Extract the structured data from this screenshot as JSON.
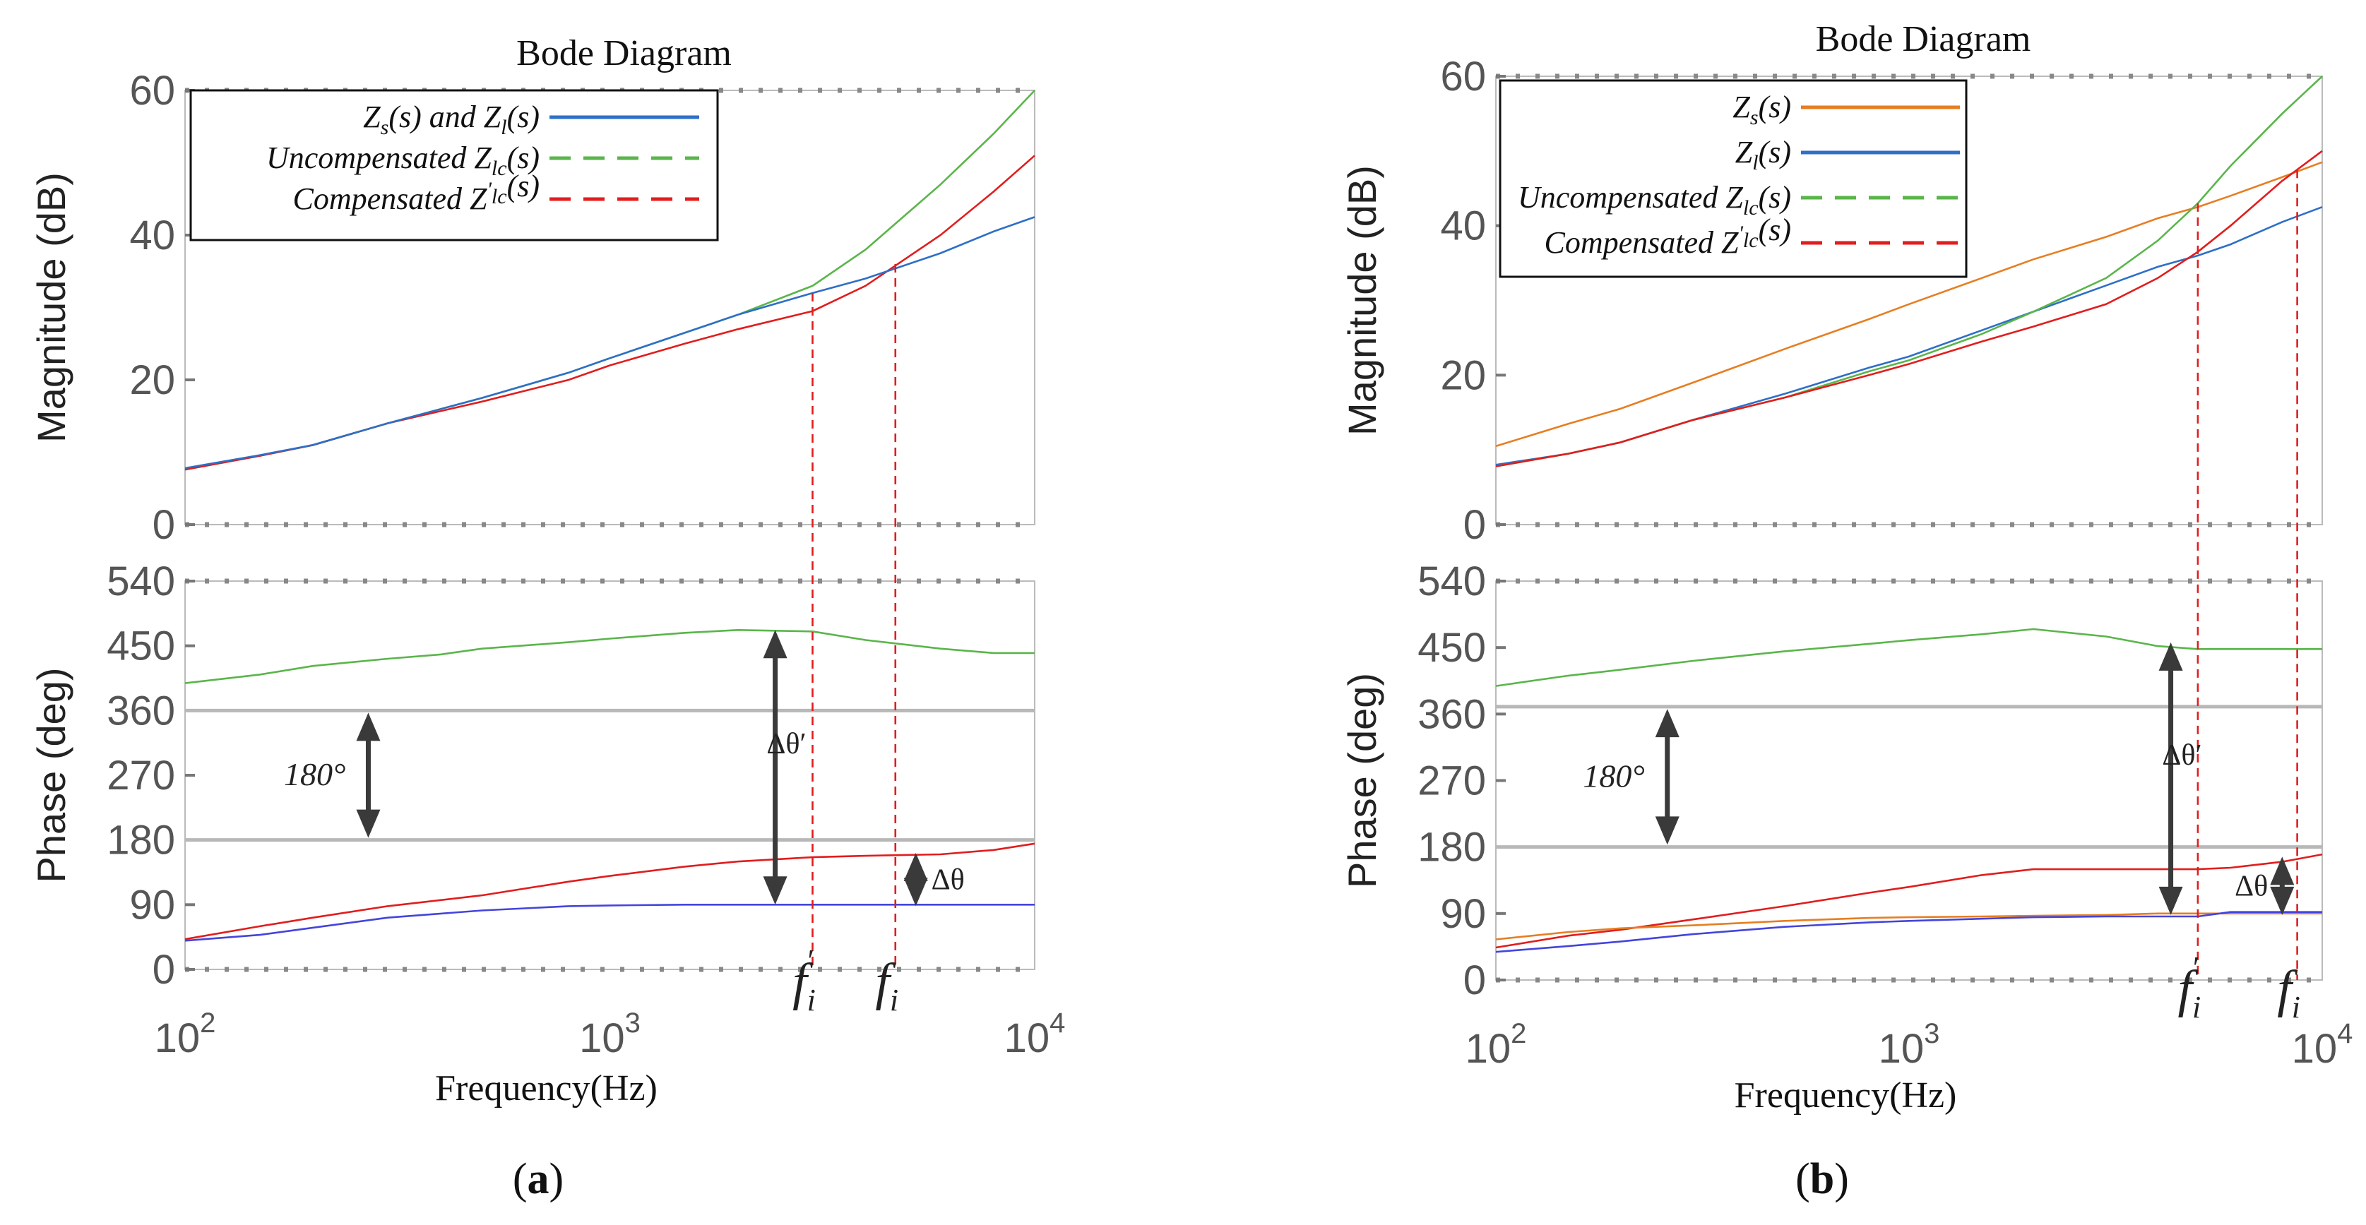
{
  "figure": {
    "panel_a_label": "a",
    "panel_b_label": "b",
    "paren_open": "(",
    "paren_close": ")"
  },
  "colors": {
    "zs_ab": "#2e6fc7",
    "zs_b": "#e67e22",
    "zl_b": "#2e6fc7",
    "uncomp": "#5ab54a",
    "comp": "#e11d1d",
    "phase_blue": "#4444dd",
    "ref": "#b8b8b8",
    "arrow": "#3a3a3a",
    "axis": "#888888"
  },
  "chart_data": [
    {
      "id": "a",
      "type": "line",
      "title": "Bode Diagram",
      "xlabel": "Frequency(Hz)",
      "xscale": "log",
      "xlim": [
        100,
        10000
      ],
      "xticks": [
        "10",
        "10",
        "10"
      ],
      "xtick_exponents": [
        "2",
        "3",
        "4"
      ],
      "magnitude": {
        "ylabel": "Magnitude (dB)",
        "ylim": [
          0,
          60
        ],
        "yticks": [
          "0",
          "20",
          "40",
          "60"
        ],
        "series": [
          {
            "name": "Uncompensated Zlc(s)",
            "color_key": "uncomp",
            "x": [
              100,
              150,
              200,
              300,
              500,
              800,
              1000,
              1500,
              2000,
              3000,
              4000,
              6000,
              8000,
              10000
            ],
            "y": [
              7.6,
              9.5,
              11,
              14,
              17.5,
              21,
              23,
              26.5,
              29,
              33,
              38,
              47,
              54,
              60
            ]
          },
          {
            "name": "Compensated Z'lc(s)",
            "color_key": "comp",
            "x": [
              100,
              150,
              200,
              300,
              500,
              800,
              1000,
              1500,
              2000,
              3000,
              4000,
              6000,
              8000,
              10000
            ],
            "y": [
              7.6,
              9.5,
              11,
              14,
              17,
              20,
              22,
              25,
              27,
              29.5,
              33,
              40,
              46,
              51
            ]
          },
          {
            "name": "Zs(s) and Zl(s)",
            "color_key": "zs_ab",
            "x": [
              100,
              150,
              200,
              300,
              500,
              800,
              1000,
              1500,
              2000,
              3000,
              4000,
              6000,
              8000,
              10000
            ],
            "y": [
              7.8,
              9.6,
              11,
              14,
              17.5,
              21,
              23,
              26.5,
              29,
              32,
              34,
              37.5,
              40.5,
              42.5
            ]
          }
        ],
        "legend": {
          "position": "top-left",
          "entries": [
            {
              "parts": [
                "Z",
                "s",
                "(s) and Z",
                "l",
                "(s)"
              ],
              "color_key": "zs_ab",
              "dash": "solid"
            },
            {
              "parts": [
                "Uncompensated Z",
                "lc",
                "(s)"
              ],
              "color_key": "uncomp",
              "dash": "dashed"
            },
            {
              "parts": [
                "Compensated Z",
                "'",
                "lc",
                "(s)"
              ],
              "color_key": "comp",
              "dash": "dashed"
            }
          ]
        },
        "vlines": [
          {
            "x": 3000,
            "y_top": 32,
            "color_key": "comp"
          },
          {
            "x": 4700,
            "y_top": 36,
            "color_key": "comp"
          }
        ]
      },
      "phase": {
        "ylabel": "Phase (deg)",
        "ylim": [
          0,
          540
        ],
        "yticks": [
          "0",
          "90",
          "180",
          "270",
          "360",
          "450",
          "540"
        ],
        "series": [
          {
            "name": "Uncompensated Zlc(s) phase",
            "color_key": "uncomp",
            "x": [
              100,
              150,
              200,
              300,
              400,
              500,
              800,
              1000,
              1500,
              2000,
              3000,
              4000,
              6000,
              8000,
              10000
            ],
            "y": [
              398,
              410,
              422,
              432,
              438,
              446,
              455,
              460,
              468,
              472,
              470,
              458,
              446,
              440,
              440
            ]
          },
          {
            "name": "Compensated Z'lc(s) phase",
            "color_key": "comp",
            "x": [
              100,
              150,
              200,
              300,
              500,
              800,
              1000,
              1500,
              2000,
              3000,
              4000,
              6000,
              8000,
              10000
            ],
            "y": [
              42,
              60,
              72,
              88,
              103,
              122,
              130,
              143,
              150,
              156,
              158,
              160,
              166,
              175
            ]
          },
          {
            "name": "Zs(s) and Zl(s) phase",
            "color_key": "phase_blue",
            "x": [
              100,
              150,
              200,
              300,
              500,
              800,
              1000,
              1500,
              2000,
              3000,
              4000,
              6000,
              8000,
              10000
            ],
            "y": [
              40,
              48,
              58,
              72,
              82,
              88,
              89,
              90,
              90,
              90,
              90,
              90,
              90,
              90
            ]
          }
        ],
        "ref_lines": [
          360,
          180
        ],
        "annotations": {
          "deg180_label": "180°",
          "dtheta_prime_label": "Δθ′",
          "dtheta_label": "Δθ"
        },
        "arrows": [
          {
            "x": 270,
            "y1": 355,
            "y2": 185
          },
          {
            "x": 2450,
            "y1": 470,
            "y2": 92
          },
          {
            "x": 5250,
            "y1": 160,
            "y2": 90
          }
        ]
      },
      "markers": [
        {
          "label": "f",
          "sub": "i",
          "sup": "′",
          "x": 3000
        },
        {
          "label": "f",
          "sub": "i",
          "sup": "",
          "x": 4700
        }
      ]
    },
    {
      "id": "b",
      "type": "line",
      "title": "Bode Diagram",
      "xlabel": "Frequency(Hz)",
      "xscale": "log",
      "xlim": [
        100,
        10000
      ],
      "xticks": [
        "10",
        "10",
        "10"
      ],
      "xtick_exponents": [
        "2",
        "3",
        "4"
      ],
      "magnitude": {
        "ylabel": "Magnitude (dB)",
        "ylim": [
          0,
          60
        ],
        "yticks": [
          "0",
          "20",
          "40",
          "60"
        ],
        "series": [
          {
            "name": "Zs(s)",
            "color_key": "zs_b",
            "x": [
              100,
              150,
              200,
              300,
              500,
              800,
              1000,
              1500,
              2000,
              3000,
              4000,
              5000,
              6000,
              8000,
              10000
            ],
            "y": [
              10.5,
              13.5,
              15.5,
              19,
              23.5,
              27.5,
              29.5,
              33,
              35.5,
              38.5,
              41,
              42.5,
              44,
              46.5,
              48.5
            ]
          },
          {
            "name": "Zl(s)",
            "color_key": "zl_b",
            "x": [
              100,
              150,
              200,
              300,
              500,
              800,
              1000,
              1500,
              2000,
              3000,
              4000,
              5000,
              6000,
              8000,
              10000
            ],
            "y": [
              8,
              9.5,
              11,
              14,
              17.5,
              21,
              22.5,
              26,
              28.5,
              32,
              34.5,
              36,
              37.5,
              40.5,
              42.5
            ]
          },
          {
            "name": "Uncompensated Zlc(s)",
            "color_key": "uncomp",
            "x": [
              100,
              150,
              200,
              300,
              500,
              800,
              1000,
              1500,
              2000,
              3000,
              4000,
              5000,
              6000,
              8000,
              10000
            ],
            "y": [
              7.8,
              9.5,
              11,
              14,
              17,
              20.5,
              22,
              25.5,
              28.5,
              33,
              38,
              43,
              48,
              55,
              60
            ]
          },
          {
            "name": "Compensated Z'lc(s)",
            "color_key": "comp",
            "x": [
              100,
              150,
              200,
              300,
              500,
              800,
              1000,
              1500,
              2000,
              3000,
              4000,
              5000,
              6000,
              8000,
              10000
            ],
            "y": [
              7.8,
              9.5,
              11,
              14,
              17,
              20,
              21.5,
              24.5,
              26.5,
              29.5,
              33,
              36.5,
              40,
              46,
              50
            ]
          }
        ],
        "legend": {
          "position": "top-left",
          "entries": [
            {
              "parts": [
                "Z",
                "s",
                "(s)"
              ],
              "color_key": "zs_b",
              "dash": "solid"
            },
            {
              "parts": [
                "Z",
                "l",
                "(s)"
              ],
              "color_key": "zl_b",
              "dash": "solid"
            },
            {
              "parts": [
                "Uncompensated Z",
                "lc",
                "(s)"
              ],
              "color_key": "uncomp",
              "dash": "dashed"
            },
            {
              "parts": [
                "Compensated Z",
                "'",
                "lc",
                "(s)"
              ],
              "color_key": "comp",
              "dash": "dashed"
            }
          ]
        },
        "vlines": [
          {
            "x": 5000,
            "y_top": 43,
            "color_key": "comp"
          },
          {
            "x": 8700,
            "y_top": 47.5,
            "color_key": "comp"
          }
        ]
      },
      "phase": {
        "ylabel": "Phase (deg)",
        "ylim": [
          0,
          540
        ],
        "yticks": [
          "0",
          "90",
          "180",
          "270",
          "360",
          "450",
          "540"
        ],
        "series": [
          {
            "name": "Uncompensated Zlc(s) phase",
            "color_key": "uncomp",
            "x": [
              100,
              150,
              200,
              300,
              500,
              800,
              1000,
              1500,
              2000,
              3000,
              4000,
              5000,
              6000,
              8000,
              10000
            ],
            "y": [
              398,
              412,
              420,
              432,
              445,
              455,
              460,
              468,
              475,
              465,
              452,
              448,
              448,
              448,
              448
            ]
          },
          {
            "name": "Compensated Z'lc(s) phase",
            "color_key": "comp",
            "x": [
              100,
              150,
              200,
              300,
              500,
              800,
              1000,
              1500,
              2000,
              3000,
              4000,
              5000,
              6000,
              8000,
              10000
            ],
            "y": [
              44,
              60,
              68,
              82,
              100,
              118,
              126,
              142,
              150,
              150,
              150,
              150,
              152,
              160,
              170
            ]
          },
          {
            "name": "Zs(s) phase",
            "color_key": "zs_b",
            "x": [
              100,
              150,
              200,
              300,
              500,
              800,
              1000,
              1500,
              2000,
              3000,
              4000,
              5000,
              6000,
              8000,
              10000
            ],
            "y": [
              55,
              65,
              70,
              74,
              80,
              84,
              85,
              86,
              87,
              88,
              90,
              90,
              90,
              90,
              90
            ]
          },
          {
            "name": "Zl(s) phase",
            "color_key": "phase_blue",
            "x": [
              100,
              150,
              200,
              300,
              500,
              800,
              1000,
              1500,
              2000,
              3000,
              4000,
              5000,
              6000,
              8000,
              10000
            ],
            "y": [
              38,
              46,
              52,
              62,
              72,
              78,
              80,
              83,
              85,
              86,
              86,
              86,
              92,
              92,
              92
            ]
          }
        ],
        "ref_lines": [
          370,
          180
        ],
        "annotations": {
          "deg180_label": "180°",
          "dtheta_prime_label": "Δθ′",
          "dtheta_label": "Δθ"
        },
        "arrows": [
          {
            "x": 260,
            "y1": 365,
            "y2": 185
          },
          {
            "x": 4300,
            "y1": 455,
            "y2": 90
          },
          {
            "x": 8000,
            "y1": 165,
            "y2": 90
          }
        ]
      },
      "markers": [
        {
          "label": "f",
          "sub": "i",
          "sup": "′",
          "x": 5000
        },
        {
          "label": "f",
          "sub": "i",
          "sup": "",
          "x": 8700
        }
      ]
    }
  ]
}
